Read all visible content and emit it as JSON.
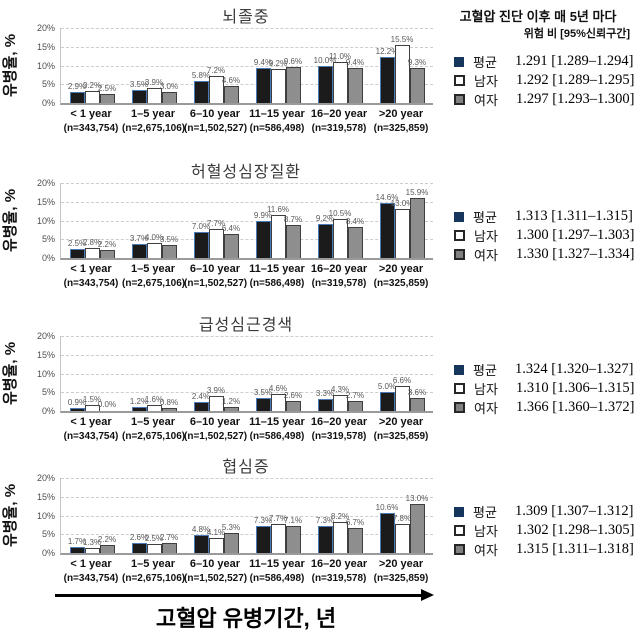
{
  "chart_data": {
    "type": "bar",
    "ylabel": "유병율, %",
    "xlabel": "고혈압 유병기간, 년",
    "ylim": [
      0,
      20
    ],
    "yticks": [
      "0%",
      "5%",
      "10%",
      "15%",
      "20%"
    ],
    "grid": "dashed horizontal at 5% intervals",
    "legend_position": "right",
    "legend_header": "고혈압 진단 이후 매 5년 마다",
    "legend_subheader": "위험 비 [95%신뢰구간]",
    "categories": [
      "< 1 year",
      "1–5 year",
      "6–10 year",
      "11–15 year",
      "16–20 year",
      ">20 year"
    ],
    "category_n": [
      "(n=343,754)",
      "(n=2,675,106)",
      "(n=1,502,527)",
      "(n=586,498)",
      "(n=319,578)",
      "(n=325,859)"
    ],
    "colors": {
      "mean_fill": "#1b1b1b",
      "mean_border": "#4a7ab5",
      "male_fill": "#ffffff",
      "female_fill": "#8e8e8e",
      "bar_border": "#3f3f3f",
      "legend_mean_marker": "#17365d",
      "gridline": "#cdcdcd",
      "value_label": "#595959"
    },
    "panels": [
      {
        "title": "뇌졸중",
        "series": [
          {
            "name": "평균",
            "values": [
              2.9,
              3.5,
              5.8,
              9.4,
              10.0,
              12.2
            ],
            "hr": "1.291 [1.289–1.294]"
          },
          {
            "name": "남자",
            "values": [
              3.2,
              3.9,
              7.2,
              9.2,
              11.0,
              15.5
            ],
            "hr": "1.292 [1.289–1.295]"
          },
          {
            "name": "여자",
            "values": [
              2.5,
              3.0,
              4.6,
              9.6,
              9.4,
              9.3
            ],
            "hr": "1.297 [1.293–1.300]"
          }
        ]
      },
      {
        "title": "허혈성심장질환",
        "series": [
          {
            "name": "평균",
            "values": [
              2.5,
              3.7,
              7.0,
              9.9,
              9.2,
              14.6
            ],
            "hr": "1.313 [1.311–1.315]"
          },
          {
            "name": "남자",
            "values": [
              2.8,
              4.0,
              7.7,
              11.6,
              10.5,
              13.0
            ],
            "hr": "1.300 [1.297–1.303]"
          },
          {
            "name": "여자",
            "values": [
              2.2,
              3.5,
              6.4,
              8.7,
              8.4,
              15.9
            ],
            "hr": "1.330 [1.327–1.334]"
          }
        ]
      },
      {
        "title": "급성심근경색",
        "series": [
          {
            "name": "평균",
            "values": [
              0.9,
              1.2,
              2.4,
              3.5,
              3.3,
              5.0
            ],
            "hr": "1.324 [1.320–1.327]"
          },
          {
            "name": "남자",
            "values": [
              1.5,
              1.6,
              3.9,
              4.6,
              4.3,
              6.6
            ],
            "hr": "1.310 [1.306–1.315]"
          },
          {
            "name": "여자",
            "values": [
              0.0,
              0.8,
              1.2,
              2.6,
              2.7,
              3.6
            ],
            "hr": "1.366 [1.360–1.372]"
          }
        ]
      },
      {
        "title": "협심증",
        "series": [
          {
            "name": "평균",
            "values": [
              1.7,
              2.6,
              4.8,
              7.3,
              7.3,
              10.6
            ],
            "hr": "1.309 [1.307–1.312]"
          },
          {
            "name": "남자",
            "values": [
              1.3,
              2.5,
              4.1,
              7.7,
              8.2,
              7.8
            ],
            "hr": "1.302 [1.298–1.305]"
          },
          {
            "name": "여자",
            "values": [
              2.2,
              2.7,
              5.3,
              7.1,
              6.7,
              13.0
            ],
            "hr": "1.315 [1.311–1.318]"
          }
        ]
      }
    ]
  }
}
